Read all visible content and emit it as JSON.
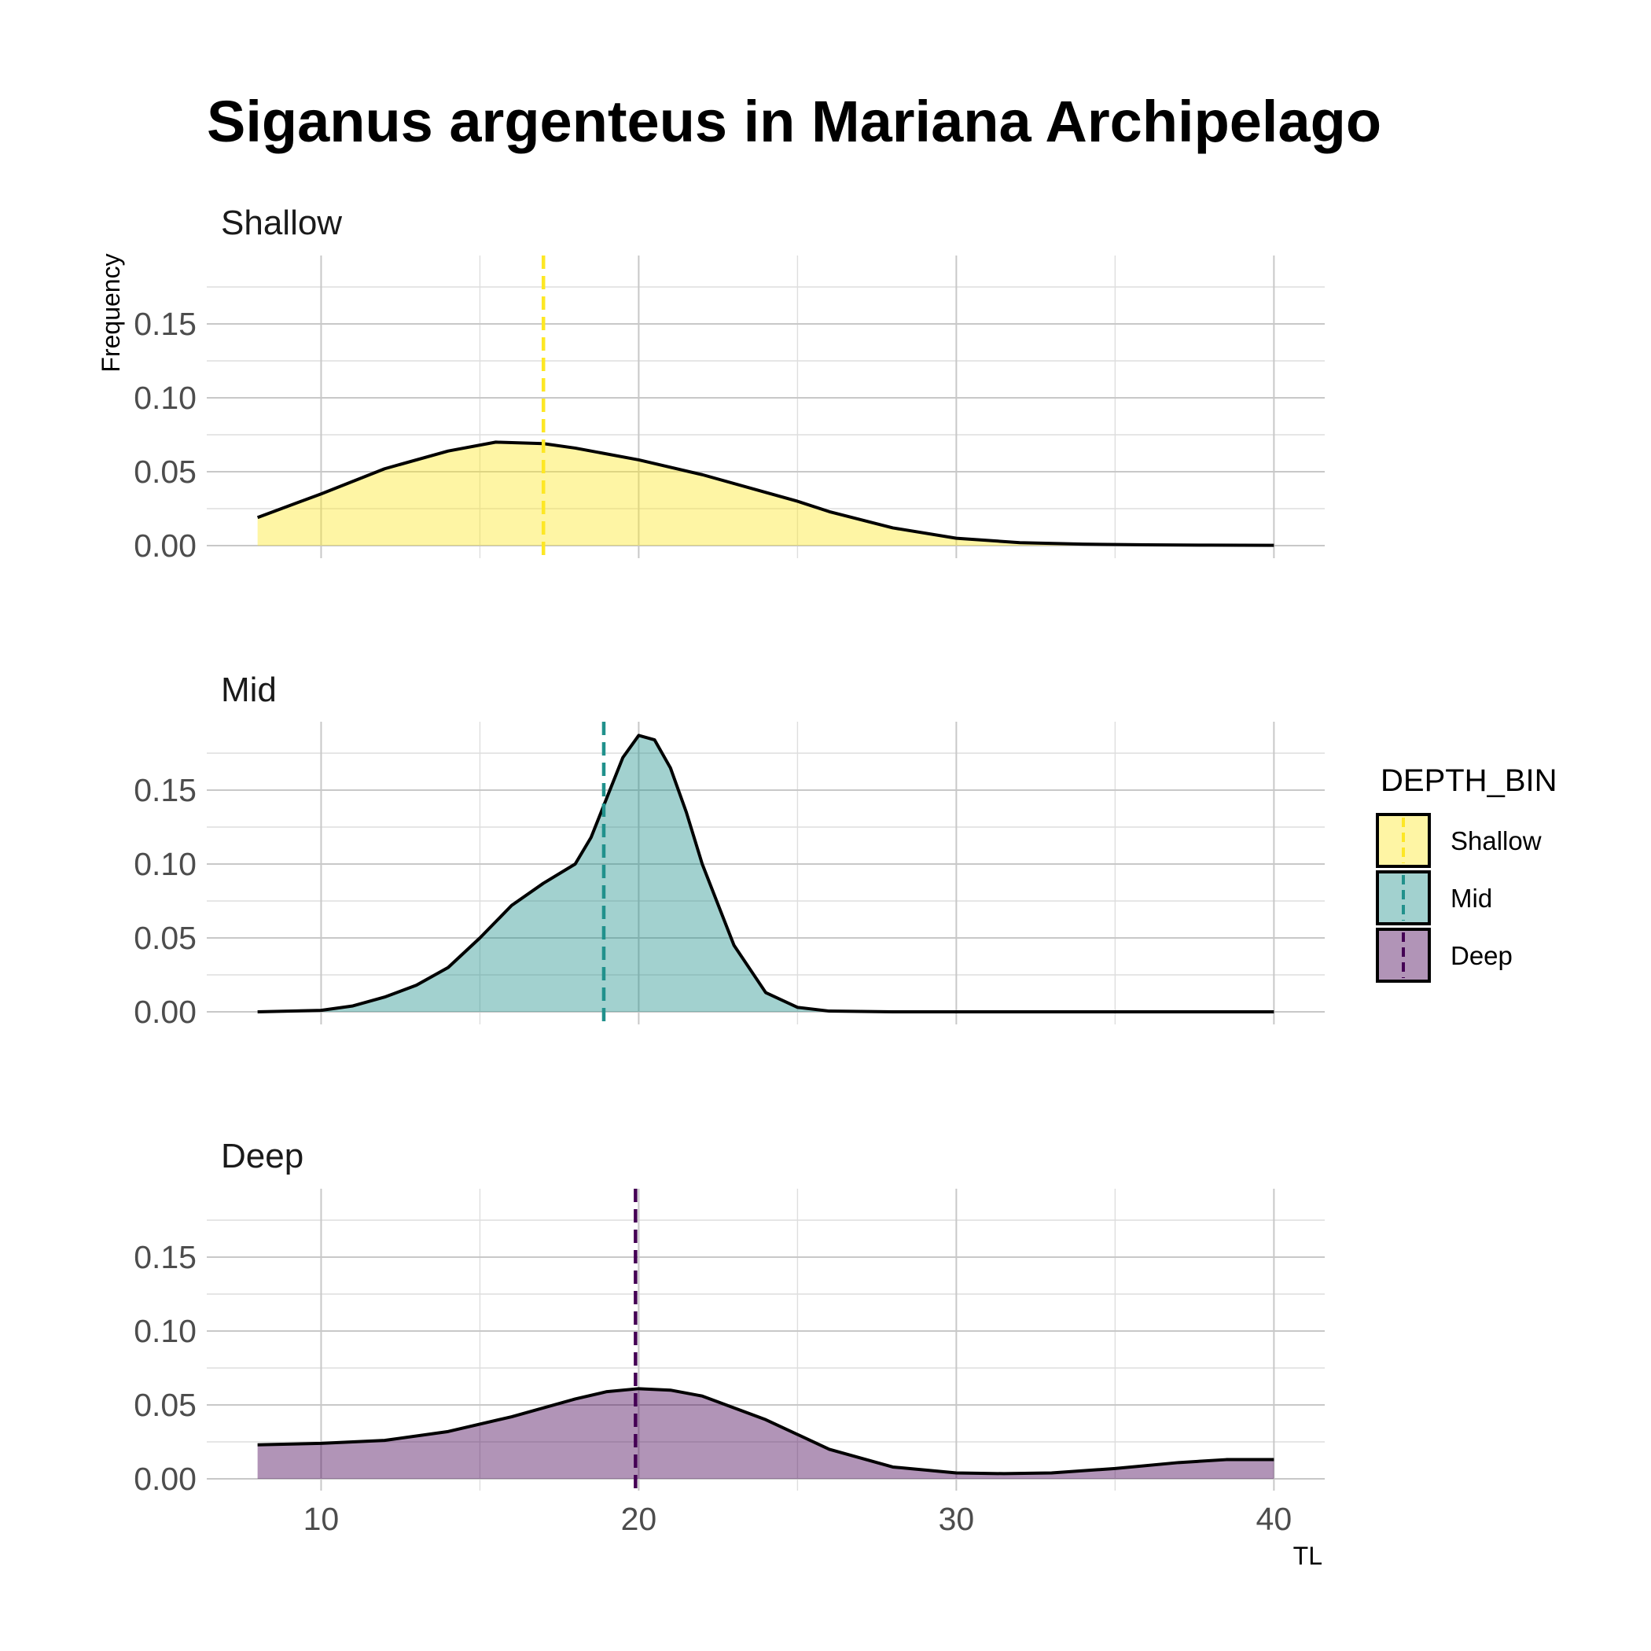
{
  "chart_data": {
    "type": "area",
    "title": "Siganus argenteus in Mariana Archipelago",
    "xlabel": "TL",
    "ylabel": "Frequency",
    "xlim": [
      6.4,
      41.6
    ],
    "ylim": [
      0,
      0.195
    ],
    "x_ticks": [
      10,
      20,
      30,
      40
    ],
    "y_ticks": [
      0.0,
      0.05,
      0.1,
      0.15
    ],
    "y_tick_labels": [
      "0.00",
      "0.05",
      "0.10",
      "0.15"
    ],
    "grid": true,
    "legend": {
      "title": "DEPTH_BIN",
      "position": "right",
      "entries": [
        "Shallow",
        "Mid",
        "Deep"
      ]
    },
    "panels": [
      {
        "name": "Shallow",
        "fill": "#FDE725",
        "line_color": "#FDE725",
        "mean_line": 17.0,
        "x": [
          8,
          10,
          12,
          14,
          15.5,
          17,
          18,
          20,
          22,
          24,
          25,
          26,
          28,
          30,
          32,
          34,
          36,
          38,
          40
        ],
        "y": [
          0.019,
          0.035,
          0.052,
          0.064,
          0.07,
          0.069,
          0.066,
          0.058,
          0.048,
          0.036,
          0.03,
          0.023,
          0.012,
          0.005,
          0.002,
          0.001,
          0.0005,
          0.0003,
          0.0002
        ]
      },
      {
        "name": "Mid",
        "fill": "#21918C",
        "line_color": "#21918C",
        "mean_line": 18.9,
        "x": [
          8,
          10,
          11,
          12,
          13,
          14,
          15,
          16,
          17,
          18,
          18.5,
          19,
          19.5,
          20,
          20.5,
          21,
          21.5,
          22,
          23,
          24,
          25,
          26,
          28,
          30,
          35,
          40
        ],
        "y": [
          0,
          0.001,
          0.004,
          0.01,
          0.018,
          0.03,
          0.05,
          0.072,
          0.087,
          0.1,
          0.118,
          0.145,
          0.172,
          0.187,
          0.184,
          0.165,
          0.135,
          0.1,
          0.045,
          0.013,
          0.003,
          0.0005,
          0,
          0,
          0,
          0
        ]
      },
      {
        "name": "Deep",
        "fill": "#440154",
        "line_color": "#440154",
        "mean_line": 19.9,
        "x": [
          8,
          10,
          12,
          14,
          16,
          18,
          19,
          20,
          21,
          22,
          24,
          26,
          28,
          30,
          31.5,
          33,
          35,
          37,
          38.5,
          40
        ],
        "y": [
          0.023,
          0.024,
          0.026,
          0.032,
          0.042,
          0.054,
          0.059,
          0.061,
          0.06,
          0.056,
          0.04,
          0.02,
          0.008,
          0.004,
          0.0035,
          0.004,
          0.007,
          0.011,
          0.013,
          0.013
        ]
      }
    ]
  }
}
